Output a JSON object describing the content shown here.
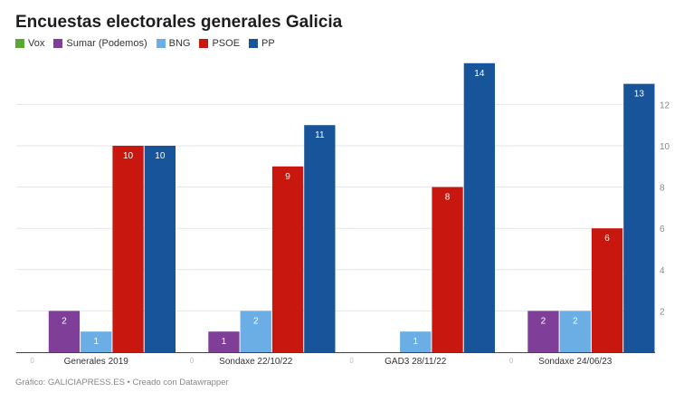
{
  "chart_data": {
    "type": "bar",
    "title": "Encuestas electorales generales Galicia",
    "categories": [
      "Generales 2019",
      "Sondaxe 22/10/22",
      "GAD3 28/11/22",
      "Sondaxe 24/06/23"
    ],
    "series": [
      {
        "name": "Vox",
        "color": "#5aa832",
        "values": [
          0,
          0,
          0,
          0
        ]
      },
      {
        "name": "Sumar (Podemos)",
        "color": "#7f3f98",
        "values": [
          2,
          1,
          null,
          2
        ]
      },
      {
        "name": "BNG",
        "color": "#6aaee5",
        "values": [
          1,
          2,
          1,
          2
        ]
      },
      {
        "name": "PSOE",
        "color": "#c8170f",
        "values": [
          10,
          9,
          8,
          6
        ]
      },
      {
        "name": "PP",
        "color": "#17549a",
        "values": [
          10,
          11,
          14,
          13
        ]
      }
    ],
    "ylim": [
      0,
      14
    ],
    "yticks": [
      2,
      4,
      6,
      8,
      10,
      12
    ],
    "y_axis_position": "right",
    "grid": true,
    "legend": "top-left",
    "data_labels": true
  },
  "footer": "Gráfico: GALICIAPRESS.ES • Creado con Datawrapper"
}
